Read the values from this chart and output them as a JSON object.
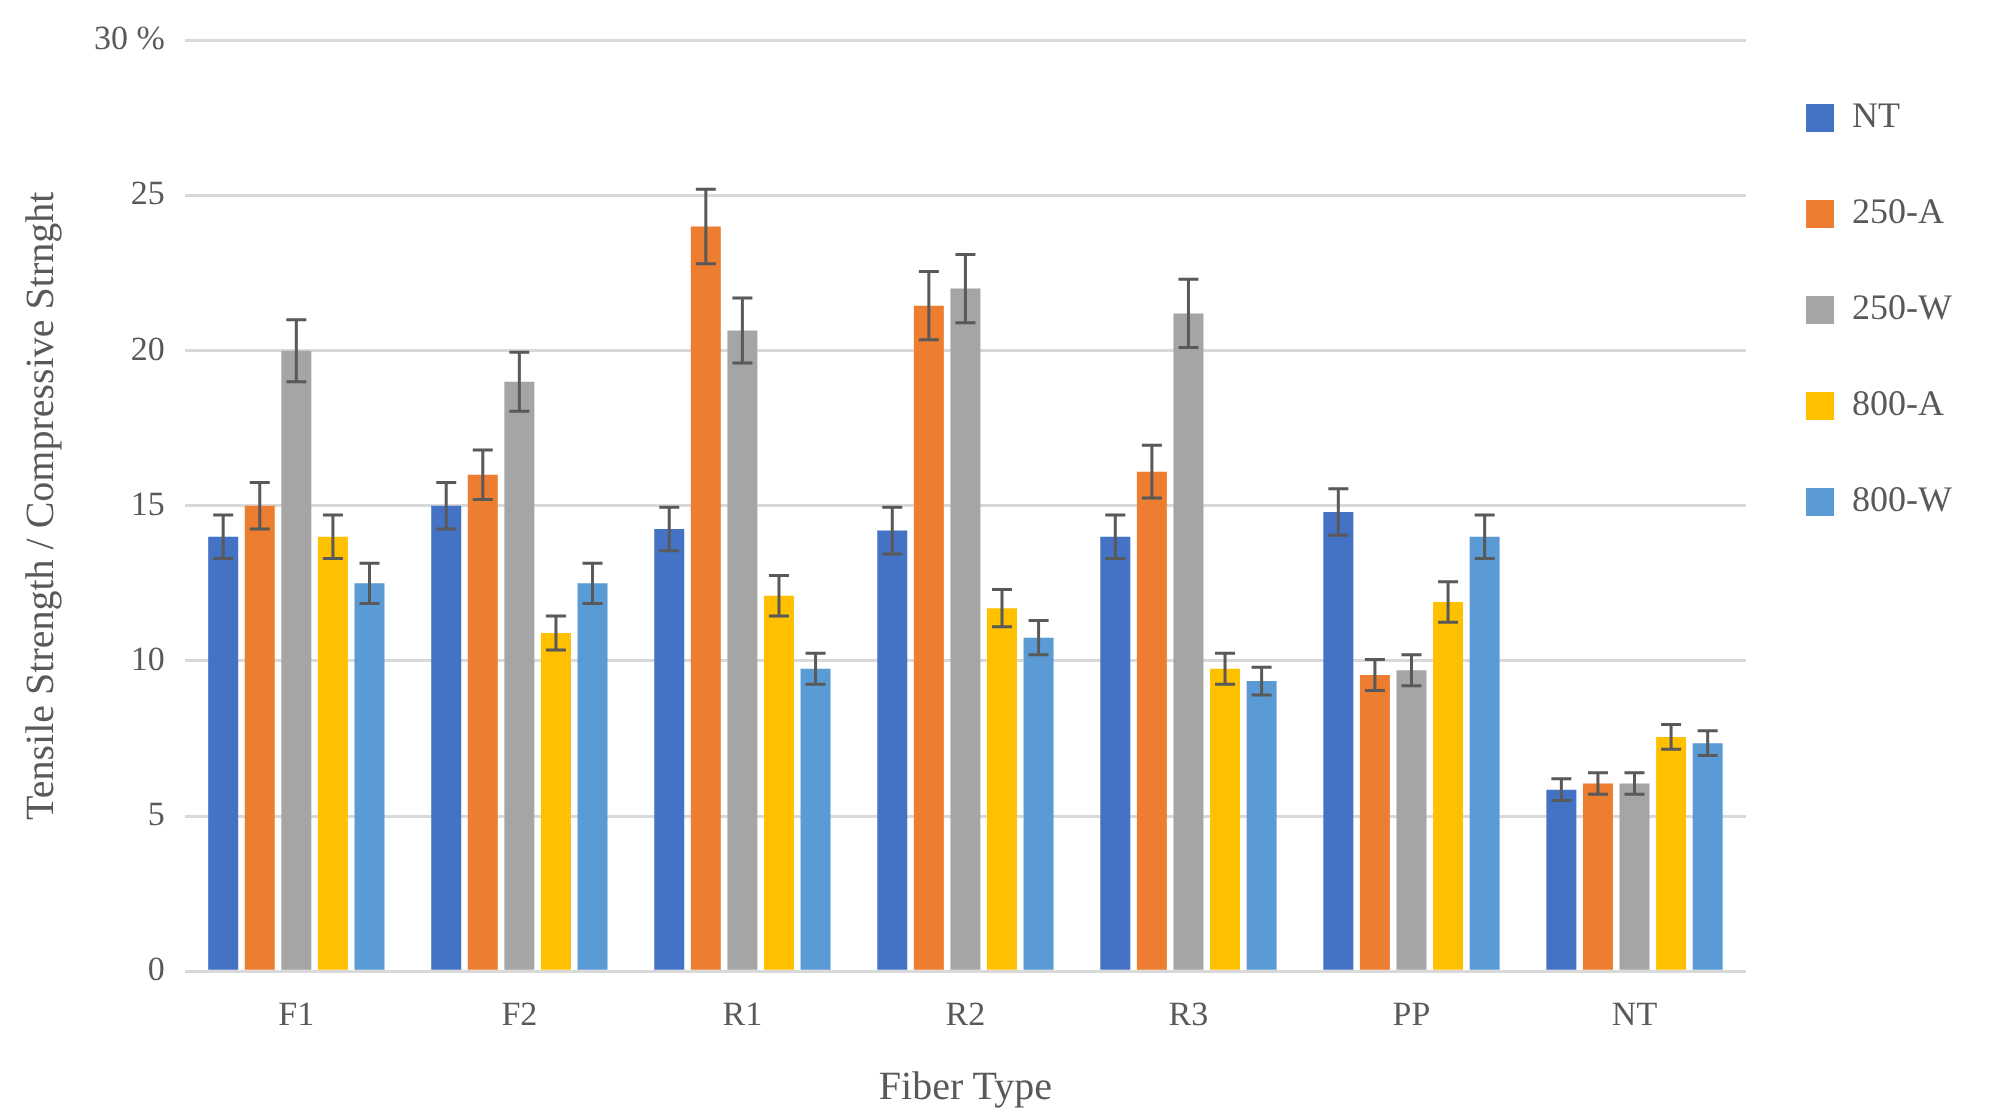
{
  "chart_data": {
    "type": "bar",
    "xlabel": "Fiber Type",
    "ylabel": "Tensile Strength / Compressive Strnght",
    "categories": [
      "F1",
      "F2",
      "R1",
      "R2",
      "R3",
      "PP",
      "NT"
    ],
    "series": [
      {
        "name": "NT",
        "color": "#4472c4",
        "values": [
          14,
          15,
          14.25,
          14.2,
          14,
          14.8,
          5.85
        ],
        "errors": [
          0.7,
          0.75,
          0.7,
          0.75,
          0.7,
          0.75,
          0.35
        ]
      },
      {
        "name": "250-A",
        "color": "#ed7d31",
        "values": [
          15,
          16,
          24,
          21.45,
          16.1,
          9.55,
          6.05
        ],
        "errors": [
          0.75,
          0.8,
          1.2,
          1.1,
          0.85,
          0.5,
          0.35
        ]
      },
      {
        "name": "250-W",
        "color": "#a5a5a5",
        "values": [
          20,
          19,
          20.65,
          22,
          21.2,
          9.7,
          6.05
        ],
        "errors": [
          1,
          0.95,
          1.05,
          1.1,
          1.1,
          0.5,
          0.35
        ]
      },
      {
        "name": "800-A",
        "color": "#ffc000",
        "values": [
          14,
          10.9,
          12.1,
          11.7,
          9.75,
          11.9,
          7.55
        ],
        "errors": [
          0.7,
          0.55,
          0.65,
          0.6,
          0.5,
          0.65,
          0.4
        ]
      },
      {
        "name": "800-W",
        "color": "#5b9bd5",
        "values": [
          12.5,
          12.5,
          9.75,
          10.75,
          9.35,
          14,
          7.35
        ],
        "errors": [
          0.65,
          0.65,
          0.5,
          0.55,
          0.45,
          0.7,
          0.4
        ]
      }
    ],
    "ylim": [
      0,
      30
    ],
    "yticks": [
      0,
      5,
      10,
      15,
      20,
      25,
      {
        "value": 30,
        "label": "30 %"
      }
    ],
    "grid": "y",
    "legend": "right"
  }
}
